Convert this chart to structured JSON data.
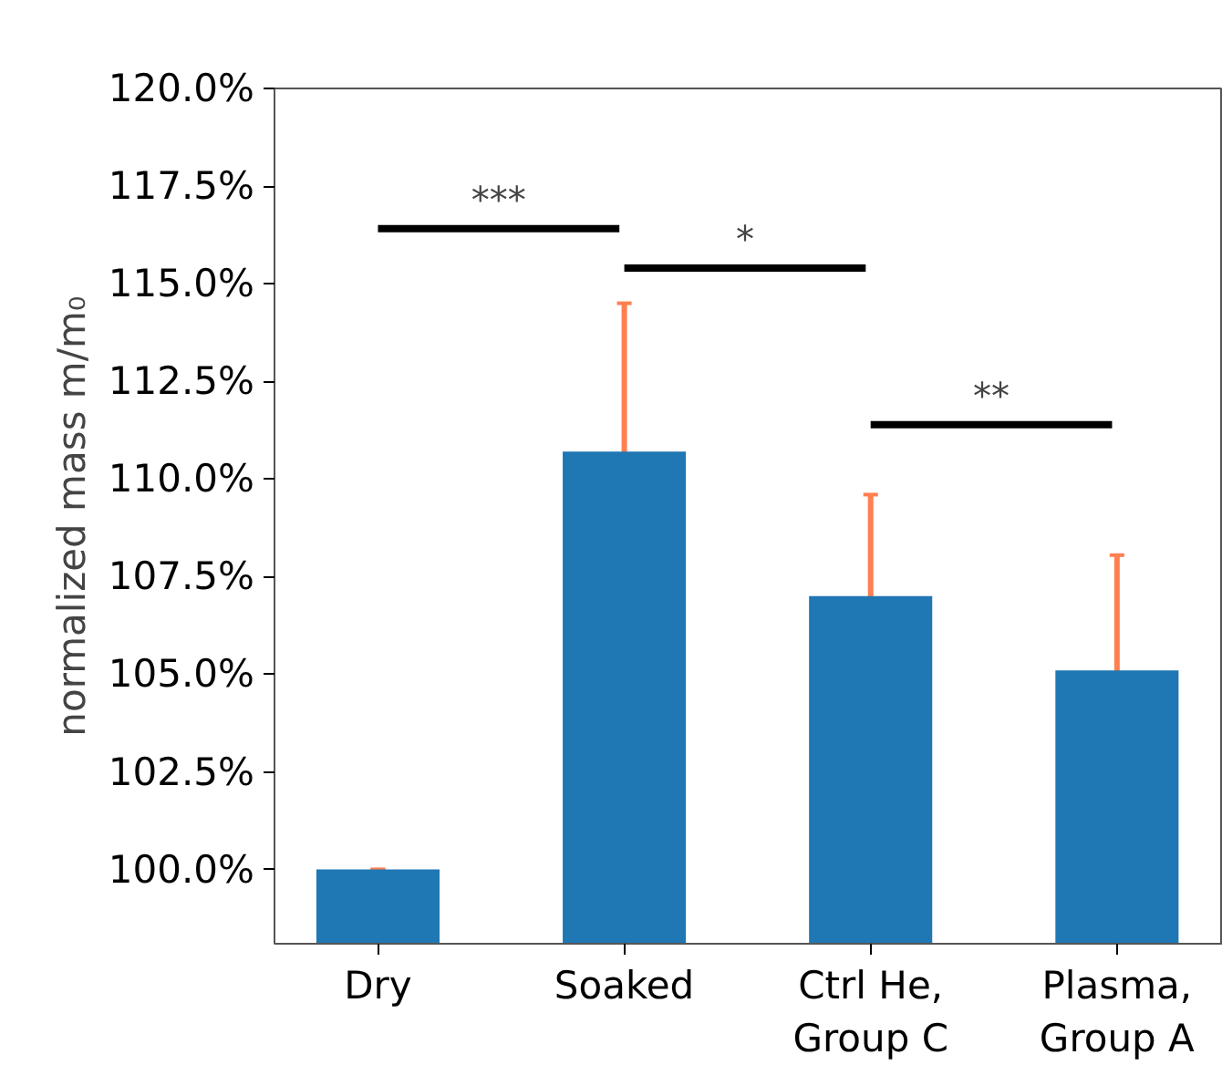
{
  "chart_data": {
    "type": "bar",
    "ylabel": "normalized mass m/m₀",
    "categories": [
      "Dry",
      "Soaked",
      "Ctrl He,\nGroup C",
      "Plasma,\nGroup A"
    ],
    "values": [
      100.0,
      110.7,
      107.0,
      105.1
    ],
    "errors": [
      0,
      3.8,
      2.6,
      2.95
    ],
    "color": "#1f77b4",
    "ylim": [
      98.1,
      120.0
    ],
    "yticks": [
      {
        "value": 100.0,
        "label": "100.0%"
      },
      {
        "value": 102.5,
        "label": "102.5%"
      },
      {
        "value": 105.0,
        "label": "105.0%"
      },
      {
        "value": 107.5,
        "label": "107.5%"
      },
      {
        "value": 110.0,
        "label": "110.0%"
      },
      {
        "value": 112.5,
        "label": "112.5%"
      },
      {
        "value": 115.0,
        "label": "115.0%"
      },
      {
        "value": 117.5,
        "label": "117.5%"
      },
      {
        "value": 120.0,
        "label": "120.0%"
      }
    ],
    "annotations": [
      "***",
      "*",
      "**"
    ],
    "grid": false
  }
}
